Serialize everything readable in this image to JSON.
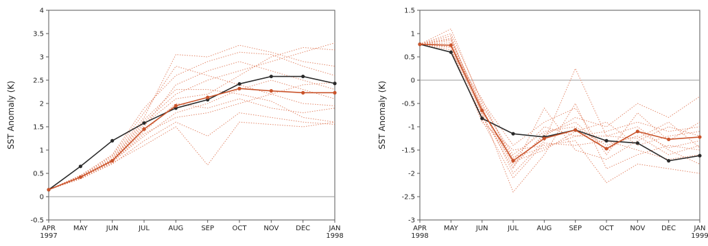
{
  "chart_data": [
    {
      "type": "line",
      "ylabel": "SST Anomaly (K)",
      "ylim": [
        -0.5,
        4
      ],
      "y_ticks": [
        "-0.5",
        "0",
        "0.5",
        "1",
        "1.5",
        "2",
        "2.5",
        "3",
        "3.5",
        "4"
      ],
      "categories": [
        "APR",
        "MAY",
        "JUN",
        "JUL",
        "AUG",
        "SEP",
        "OCT",
        "NOV",
        "DEC",
        "JAN"
      ],
      "year_labels": {
        "first": "1997",
        "last": "1998"
      },
      "zero_line": true,
      "colors": {
        "observed": "#2a2a2a",
        "ensemble_mean": "#c9532a",
        "members": "#e07b5a"
      },
      "series": [
        {
          "style": "solid-black-markers",
          "values": [
            0.15,
            0.65,
            1.2,
            1.58,
            1.9,
            2.08,
            2.42,
            2.58,
            2.58,
            2.43
          ]
        },
        {
          "style": "solid-orange-markers",
          "values": [
            0.15,
            0.42,
            0.77,
            1.45,
            1.95,
            2.13,
            2.32,
            2.27,
            2.23,
            2.23
          ]
        }
      ],
      "members": [
        [
          0.15,
          0.45,
          0.9,
          1.9,
          2.6,
          2.9,
          3.1,
          3.05,
          2.8,
          2.6
        ],
        [
          0.15,
          0.4,
          0.8,
          1.6,
          2.2,
          2.5,
          2.7,
          2.9,
          3.1,
          3.3
        ],
        [
          0.15,
          0.42,
          0.75,
          1.3,
          1.8,
          2.0,
          2.3,
          2.5,
          2.3,
          2.1
        ],
        [
          0.15,
          0.38,
          0.7,
          1.2,
          1.6,
          1.3,
          1.8,
          1.7,
          1.6,
          1.55
        ],
        [
          0.15,
          0.44,
          0.85,
          1.7,
          3.05,
          3.0,
          3.25,
          3.1,
          2.9,
          2.8
        ],
        [
          0.15,
          0.4,
          0.72,
          1.1,
          1.5,
          0.68,
          1.6,
          1.55,
          1.5,
          1.6
        ],
        [
          0.15,
          0.43,
          0.78,
          1.5,
          2.4,
          2.7,
          2.9,
          2.7,
          2.5,
          2.3
        ],
        [
          0.15,
          0.41,
          0.76,
          1.4,
          2.0,
          1.9,
          2.1,
          1.9,
          1.8,
          1.9
        ],
        [
          0.15,
          0.46,
          0.88,
          1.8,
          2.8,
          2.6,
          2.4,
          2.2,
          2.0,
          1.95
        ],
        [
          0.15,
          0.39,
          0.74,
          1.35,
          1.7,
          1.8,
          2.0,
          2.2,
          2.4,
          2.45
        ],
        [
          0.15,
          0.42,
          0.79,
          1.55,
          2.1,
          2.2,
          2.6,
          3.0,
          3.2,
          3.15
        ],
        [
          0.15,
          0.44,
          0.81,
          1.65,
          2.3,
          2.3,
          2.2,
          2.05,
          1.7,
          1.6
        ]
      ]
    },
    {
      "type": "line",
      "ylabel": "SST Anomaly (K)",
      "ylim": [
        -3,
        1.5
      ],
      "y_ticks": [
        "-3",
        "-2.5",
        "-2",
        "-1.5",
        "-1",
        "-0.5",
        "0",
        "0.5",
        "1",
        "1.5"
      ],
      "categories": [
        "APR",
        "MAY",
        "JUN",
        "JUL",
        "AUG",
        "SEP",
        "OCT",
        "NOV",
        "DEC",
        "JAN"
      ],
      "year_labels": {
        "first": "1998",
        "last": "1999"
      },
      "zero_line": true,
      "colors": {
        "observed": "#2a2a2a",
        "ensemble_mean": "#c9532a",
        "members": "#e07b5a"
      },
      "series": [
        {
          "style": "solid-black-markers",
          "values": [
            0.77,
            0.6,
            -0.82,
            -1.15,
            -1.22,
            -1.07,
            -1.3,
            -1.35,
            -1.73,
            -1.62
          ]
        },
        {
          "style": "solid-orange-markers",
          "values": [
            0.77,
            0.75,
            -0.65,
            -1.73,
            -1.25,
            -1.07,
            -1.47,
            -1.1,
            -1.27,
            -1.22
          ]
        }
      ],
      "members": [
        [
          0.77,
          1.1,
          -0.5,
          -1.7,
          -1.0,
          -1.2,
          -1.1,
          -0.9,
          -1.1,
          -1.0
        ],
        [
          0.77,
          0.9,
          -0.7,
          -2.4,
          -1.6,
          -0.5,
          -1.9,
          -1.6,
          -1.4,
          -1.5
        ],
        [
          0.77,
          0.8,
          -0.6,
          -2.0,
          -1.3,
          0.25,
          -1.2,
          -1.0,
          -1.5,
          -1.8
        ],
        [
          0.77,
          0.7,
          -0.9,
          -1.5,
          -1.4,
          -1.3,
          -2.2,
          -1.8,
          -1.9,
          -2.0
        ],
        [
          0.77,
          0.6,
          -0.4,
          -1.8,
          -1.2,
          -0.8,
          -1.0,
          -0.5,
          -0.8,
          -0.35
        ],
        [
          0.77,
          0.95,
          -0.75,
          -1.9,
          -0.6,
          -1.5,
          -1.7,
          -1.3,
          -1.0,
          -1.2
        ],
        [
          0.77,
          0.85,
          -0.55,
          -1.6,
          -1.1,
          -1.0,
          -1.4,
          -1.2,
          -1.6,
          -1.4
        ],
        [
          0.77,
          0.75,
          -0.8,
          -1.75,
          -1.5,
          -1.1,
          -0.9,
          -1.4,
          -1.2,
          -1.1
        ],
        [
          0.77,
          1.0,
          -0.45,
          -1.4,
          -0.9,
          -0.6,
          -1.6,
          -0.7,
          -1.3,
          -0.9
        ],
        [
          0.77,
          0.65,
          -0.85,
          -2.1,
          -1.35,
          -1.4,
          -1.3,
          -1.5,
          -1.7,
          -1.6
        ],
        [
          0.77,
          0.88,
          -0.6,
          -1.85,
          -1.15,
          -0.9,
          -1.5,
          -1.1,
          -1.45,
          -1.3
        ],
        [
          0.77,
          0.72,
          -0.7,
          -1.65,
          -1.45,
          -1.2,
          -1.2,
          -1.25,
          -0.9,
          -1.45
        ]
      ]
    }
  ]
}
